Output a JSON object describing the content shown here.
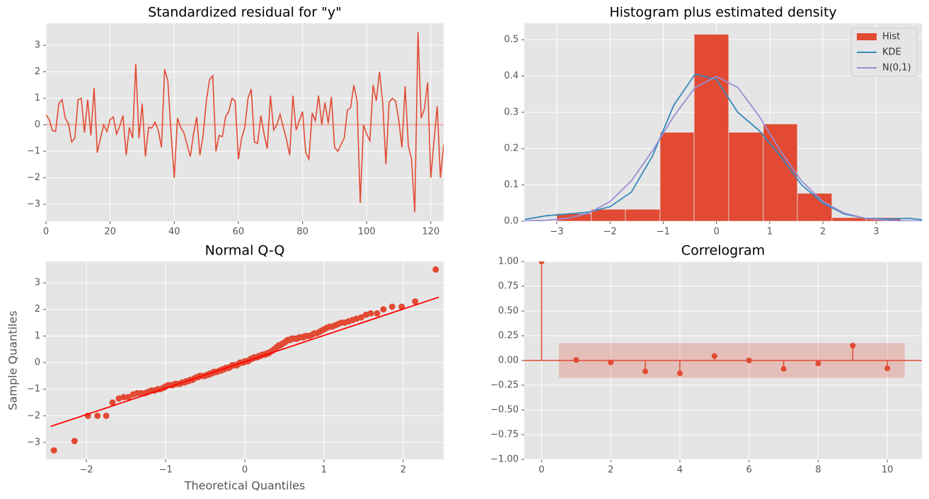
{
  "chart_data": [
    {
      "type": "line",
      "title": "Standardized residual for \"y\"",
      "color": "#E24A33",
      "values": [
        0.38,
        0.2,
        -0.22,
        -0.25,
        0.8,
        0.95,
        0.25,
        0.05,
        -0.65,
        -0.5,
        0.95,
        1.0,
        -0.3,
        0.95,
        -0.4,
        1.4,
        -1.05,
        -0.5,
        0.0,
        -0.25,
        0.2,
        0.3,
        -0.35,
        -0.05,
        0.35,
        -1.15,
        -0.1,
        -0.5,
        2.3,
        -0.5,
        0.8,
        -1.2,
        -0.1,
        -0.12,
        0.1,
        -0.2,
        -0.85,
        2.1,
        1.65,
        -0.3,
        -2.0,
        0.25,
        -0.1,
        -0.3,
        -0.75,
        -1.2,
        -0.35,
        0.3,
        -1.15,
        -0.4,
        0.9,
        1.7,
        1.85,
        -1.0,
        -0.4,
        -0.45,
        0.3,
        0.5,
        1.0,
        0.9,
        -1.3,
        -0.5,
        -0.1,
        1.0,
        1.35,
        -0.65,
        -0.7,
        0.35,
        -0.35,
        -0.9,
        1.1,
        -0.2,
        0.0,
        0.4,
        -0.1,
        -0.55,
        -1.15,
        1.1,
        -0.2,
        0.15,
        0.5,
        -1.05,
        -1.3,
        0.45,
        0.15,
        1.1,
        0.0,
        0.85,
        0.05,
        1.05,
        -0.85,
        -1.0,
        -0.75,
        -0.5,
        0.55,
        0.65,
        1.5,
        0.9,
        -2.95,
        0.0,
        -0.35,
        -0.6,
        1.5,
        0.9,
        2.0,
        0.85,
        -1.5,
        0.85,
        1.0,
        0.9,
        0.2,
        -0.85,
        1.45,
        -0.8,
        -1.3,
        -3.3,
        3.5,
        0.25,
        0.6,
        1.6,
        -2.0,
        -0.6,
        0.7,
        -2.0,
        -0.75
      ],
      "xlim": [
        0,
        124
      ],
      "xticks": [
        0,
        20,
        40,
        60,
        80,
        100,
        120
      ],
      "ylim": [
        -3.64,
        3.83
      ],
      "yticks": [
        {
          "value": -3,
          "label": "−3"
        },
        {
          "value": -2,
          "label": "−2"
        },
        {
          "value": -1,
          "label": "−1"
        },
        0,
        1,
        2,
        3
      ],
      "grid": true
    },
    {
      "type": "histogram",
      "title": "Histogram plus estimated density",
      "hist": {
        "name": "Hist",
        "color": "#E24A33",
        "bins": [
          -3.0,
          -2.35,
          -1.71,
          -1.06,
          -0.42,
          0.23,
          0.88,
          1.52,
          2.17,
          2.81,
          3.46
        ],
        "values": [
          0.021,
          0.033,
          0.033,
          0.245,
          0.515,
          0.245,
          0.268,
          0.077,
          0.01,
          0.01
        ]
      },
      "x": [
        -3.6,
        -3.2,
        -2.8,
        -2.4,
        -2.0,
        -1.6,
        -1.2,
        -0.8,
        -0.4,
        0,
        0.4,
        0.8,
        1.2,
        1.6,
        2.0,
        2.4,
        2.8,
        3.2,
        3.6,
        3.86
      ],
      "series": [
        {
          "name": "KDE",
          "color": "#348ABD",
          "values": [
            0.005,
            0.015,
            0.02,
            0.025,
            0.04,
            0.08,
            0.18,
            0.32,
            0.405,
            0.39,
            0.3,
            0.25,
            0.18,
            0.1,
            0.05,
            0.02,
            0.008,
            0.006,
            0.008,
            0.004
          ]
        },
        {
          "name": "N(0,1)",
          "color": "#988ED5",
          "values": [
            0.0006,
            0.0024,
            0.0079,
            0.0224,
            0.054,
            0.1109,
            0.1942,
            0.2897,
            0.3683,
            0.3989,
            0.3683,
            0.2897,
            0.1942,
            0.1109,
            0.054,
            0.0224,
            0.0079,
            0.0024,
            0.0006,
            0.0002
          ]
        }
      ],
      "legend": "upper right",
      "xlim": [
        -3.61,
        3.86
      ],
      "xticks": [
        {
          "value": -3,
          "label": "−3"
        },
        {
          "value": -2,
          "label": "−2"
        },
        {
          "value": -1,
          "label": "−1"
        },
        0,
        1,
        2,
        3
      ],
      "ylim": [
        0,
        0.545
      ],
      "yticks": [
        {
          "value": 0,
          "label": "0.0"
        },
        0.1,
        0.2,
        0.3,
        0.4,
        0.5
      ],
      "grid": true
    },
    {
      "type": "scatter",
      "title": "Normal Q-Q",
      "xlabel": "Theoretical Quantiles",
      "ylabel": "Sample Quantiles",
      "color": "#E24A33",
      "x": [
        -2.41,
        -2.15,
        -1.98,
        -1.86,
        -1.75,
        -1.67,
        -1.59,
        -1.53,
        -1.47,
        -1.41,
        -1.36,
        -1.31,
        -1.26,
        -1.22,
        -1.18,
        -1.14,
        -1.1,
        -1.07,
        -1.03,
        -1.0,
        -0.97,
        -0.94,
        -0.91,
        -0.88,
        -0.85,
        -0.82,
        -0.79,
        -0.76,
        -0.74,
        -0.71,
        -0.69,
        -0.66,
        -0.64,
        -0.61,
        -0.59,
        -0.57,
        -0.54,
        -0.52,
        -0.5,
        -0.47,
        -0.45,
        -0.43,
        -0.41,
        -0.39,
        -0.37,
        -0.35,
        -0.32,
        -0.3,
        -0.28,
        -0.26,
        -0.24,
        -0.22,
        -0.2,
        -0.18,
        -0.16,
        -0.14,
        -0.12,
        -0.1,
        -0.08,
        -0.06,
        -0.04,
        -0.02,
        0,
        0.02,
        0.04,
        0.06,
        0.08,
        0.1,
        0.12,
        0.14,
        0.16,
        0.18,
        0.2,
        0.22,
        0.24,
        0.26,
        0.28,
        0.3,
        0.32,
        0.35,
        0.37,
        0.39,
        0.41,
        0.43,
        0.45,
        0.47,
        0.5,
        0.52,
        0.54,
        0.57,
        0.59,
        0.61,
        0.64,
        0.66,
        0.69,
        0.71,
        0.74,
        0.76,
        0.79,
        0.82,
        0.85,
        0.88,
        0.91,
        0.94,
        0.97,
        1.0,
        1.03,
        1.07,
        1.1,
        1.14,
        1.18,
        1.22,
        1.26,
        1.31,
        1.36,
        1.41,
        1.47,
        1.53,
        1.59,
        1.67,
        1.75,
        1.86,
        1.98,
        2.15,
        2.41
      ],
      "values": [
        -3.3,
        -2.95,
        -2.0,
        -2.0,
        -2.0,
        -1.5,
        -1.35,
        -1.3,
        -1.3,
        -1.2,
        -1.15,
        -1.15,
        -1.15,
        -1.1,
        -1.05,
        -1.05,
        -1.0,
        -1.0,
        -0.95,
        -0.9,
        -0.85,
        -0.85,
        -0.85,
        -0.8,
        -0.8,
        -0.8,
        -0.75,
        -0.75,
        -0.7,
        -0.7,
        -0.65,
        -0.65,
        -0.6,
        -0.55,
        -0.55,
        -0.5,
        -0.5,
        -0.5,
        -0.5,
        -0.45,
        -0.45,
        -0.4,
        -0.4,
        -0.35,
        -0.35,
        -0.35,
        -0.3,
        -0.3,
        -0.25,
        -0.25,
        -0.2,
        -0.2,
        -0.2,
        -0.15,
        -0.1,
        -0.1,
        -0.1,
        -0.1,
        -0.05,
        0.0,
        0.0,
        0.0,
        0.05,
        0.05,
        0.05,
        0.1,
        0.15,
        0.15,
        0.2,
        0.2,
        0.2,
        0.25,
        0.25,
        0.3,
        0.3,
        0.3,
        0.35,
        0.35,
        0.4,
        0.45,
        0.5,
        0.55,
        0.6,
        0.65,
        0.65,
        0.7,
        0.75,
        0.8,
        0.85,
        0.85,
        0.9,
        0.9,
        0.9,
        0.9,
        0.95,
        0.95,
        0.95,
        1.0,
        1.0,
        1.0,
        1.05,
        1.1,
        1.1,
        1.15,
        1.2,
        1.25,
        1.3,
        1.35,
        1.35,
        1.4,
        1.45,
        1.5,
        1.5,
        1.55,
        1.6,
        1.65,
        1.7,
        1.8,
        1.85,
        1.85,
        2.0,
        2.1,
        2.1,
        2.3,
        3.5
      ],
      "fit": {
        "color": "#ff0000",
        "x": [
          -2.45,
          2.45
        ],
        "values": [
          -2.4,
          2.46
        ]
      },
      "xlim": [
        -2.51,
        2.51
      ],
      "xticks": [
        {
          "value": -2,
          "label": "−2"
        },
        {
          "value": -1,
          "label": "−1"
        },
        0,
        1,
        2
      ],
      "ylim": [
        -3.64,
        3.8
      ],
      "yticks": [
        {
          "value": -3,
          "label": "−3"
        },
        {
          "value": -2,
          "label": "−2"
        },
        {
          "value": -1,
          "label": "−1"
        },
        0,
        1,
        2,
        3
      ],
      "grid": true
    },
    {
      "type": "stem",
      "title": "Correlogram",
      "color": "#E24A33",
      "x": [
        0,
        1,
        2,
        3,
        4,
        5,
        6,
        7,
        8,
        9,
        10
      ],
      "values": [
        1.0,
        0.005,
        -0.02,
        -0.11,
        -0.13,
        0.045,
        0.0,
        -0.085,
        -0.03,
        0.15,
        -0.08
      ],
      "confint": [
        -0.175,
        0.175
      ],
      "confint_x": [
        0.5,
        10.5
      ],
      "xlim": [
        -0.5,
        11
      ],
      "xticks": [
        0,
        2,
        4,
        6,
        8,
        10
      ],
      "ylim": [
        -1,
        1
      ],
      "yticks": [
        {
          "value": -1,
          "label": "−1.00"
        },
        {
          "value": -0.75,
          "label": "−0.75"
        },
        {
          "value": -0.5,
          "label": "−0.50"
        },
        {
          "value": -0.25,
          "label": "−0.25"
        },
        {
          "value": 0,
          "label": "0.00"
        },
        0.25,
        {
          "value": 0.5,
          "label": "0.50"
        },
        0.75,
        {
          "value": 1,
          "label": "1.00"
        }
      ],
      "grid": true
    }
  ]
}
